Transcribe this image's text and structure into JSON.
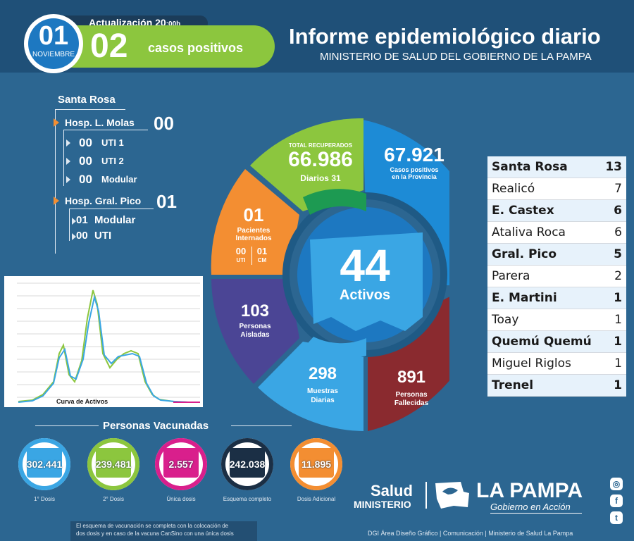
{
  "colors": {
    "background": "#2c6691",
    "header": "#1f5078",
    "green": "#8cc63e",
    "orange": "#f38e32",
    "purple": "#4b4595",
    "blue": "#1d8bd6",
    "maroon": "#8a2a2f",
    "light_blue": "#3aa6e4",
    "magenta": "#d91f8c",
    "navy": "#1b2f45"
  },
  "header": {
    "update_label": "Actualización 20",
    "update_time": ":00h",
    "date_day": "01",
    "date_month": "NOVIEMBRE",
    "new_cases": "02",
    "new_cases_label": "casos positivos",
    "title": "Informe epidemiológico diario",
    "subtitle": "MINISTERIO DE SALUD DEL GOBIERNO DE LA PAMPA"
  },
  "hospitals": {
    "city": "Santa Rosa",
    "molas": {
      "name": "Hosp. L. Molas",
      "total": "00",
      "rows": [
        {
          "value": "00",
          "label": "UTI 1"
        },
        {
          "value": "00",
          "label": "UTI 2"
        },
        {
          "value": "00",
          "label": "Modular"
        }
      ]
    },
    "pico": {
      "name": "Hosp. Gral. Pico",
      "total": "01",
      "rows": [
        {
          "value": "01",
          "label": "Modular"
        },
        {
          "value": "00",
          "label": "UTI"
        }
      ]
    }
  },
  "chart": {
    "caption": "Curva de Activos"
  },
  "wheel": {
    "recovered": {
      "label": "TOTAL RECUPERADOS",
      "value": "66.986",
      "daily_label": "Diarios",
      "daily_value": "31"
    },
    "positives": {
      "value": "67.921",
      "label1": "Casos positivos",
      "label2": "en la Provincia"
    },
    "hospitalized": {
      "value": "01",
      "label1": "Pacientes",
      "label2": "Internados",
      "uti_value": "00",
      "uti_label": "UTI",
      "cm_value": "01",
      "cm_label": "CM"
    },
    "active": {
      "value": "44",
      "label": "Activos"
    },
    "isolated": {
      "value": "103",
      "label1": "Personas",
      "label2": "Aisladas"
    },
    "samples": {
      "value": "298",
      "label1": "Muestras",
      "label2": "Diarias"
    },
    "deaths": {
      "value": "891",
      "label1": "Personas",
      "label2": "Fallecidas"
    }
  },
  "localities": [
    {
      "name": "Santa Rosa",
      "value": "13"
    },
    {
      "name": "Realicó",
      "value": "7"
    },
    {
      "name": "E. Castex",
      "value": "6"
    },
    {
      "name": "Ataliva Roca",
      "value": "6"
    },
    {
      "name": "Gral. Pico",
      "value": "5"
    },
    {
      "name": "Parera",
      "value": "2"
    },
    {
      "name": "E. Martini",
      "value": "1"
    },
    {
      "name": "Toay",
      "value": "1"
    },
    {
      "name": "Quemú Quemú",
      "value": "1"
    },
    {
      "name": "Miguel Riglos",
      "value": "1"
    },
    {
      "name": "Trenel",
      "value": "1"
    }
  ],
  "vaccines": {
    "title": "Personas Vacunadas",
    "items": [
      {
        "value": "302.441",
        "label": "1° Dosis",
        "color": "#3aa6e4"
      },
      {
        "value": "239.481",
        "label": "2° Dosis",
        "color": "#8cc63e"
      },
      {
        "value": "2.557",
        "label": "Única dosis",
        "color": "#d91f8c"
      },
      {
        "value": "242.038",
        "label": "Esquema completo",
        "color": "#1b2f45"
      },
      {
        "value": "11.895",
        "label": "Dosis Adicional",
        "color": "#f38e32"
      }
    ],
    "note1": "El esquema de vacunación se completa con la colocación de",
    "note2": "dos dosis y en caso de la vacuna CanSino con una única dosis"
  },
  "footer": {
    "salud": "Salud",
    "ministerio": "MINISTERIO",
    "la_pampa": "LA PAMPA",
    "gobierno": "Gobierno en Acción",
    "credits": "DGI Área Diseño Gráfico  | Comunicación | Ministerio de Salud La Pampa"
  }
}
